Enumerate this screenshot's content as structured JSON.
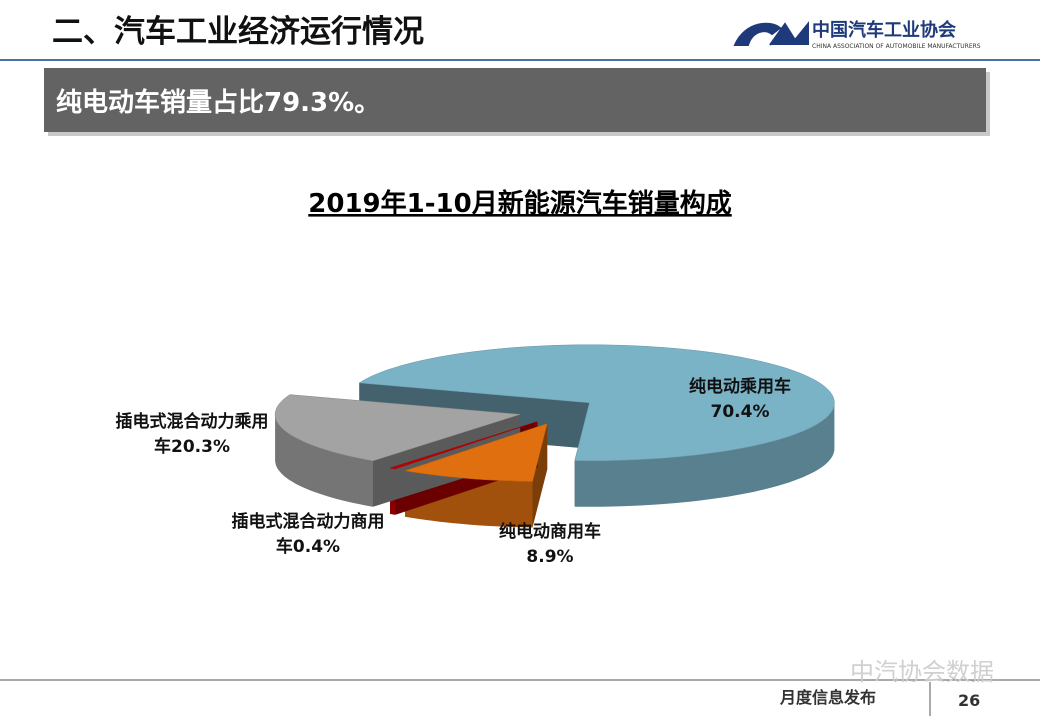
{
  "header": {
    "title": "二、汽车工业经济运行情况",
    "logo_name": "中国汽车工业协会",
    "logo_subtitle": "CHINA ASSOCIATION OF AUTOMOBILE MANUFACTURERS"
  },
  "banner": "纯电动车销量占比79.3%。",
  "chart_data": {
    "type": "pie",
    "title": "2019年1-10月新能源汽车销量构成",
    "categories": [
      "纯电动乘用车",
      "纯电动商用车",
      "插电式混合动力商用车",
      "插电式混合动力乘用车"
    ],
    "values": [
      70.4,
      8.9,
      0.4,
      20.3
    ],
    "value_labels": [
      "70.4%",
      "8.9%",
      "0.4%",
      "20.3%"
    ],
    "colors": [
      "#7ab2c6",
      "#e0700f",
      "#c00000",
      "#a3a3a3"
    ]
  },
  "footer": {
    "label": "月度信息发布",
    "page": "26",
    "watermark": "中汽协会数据"
  }
}
